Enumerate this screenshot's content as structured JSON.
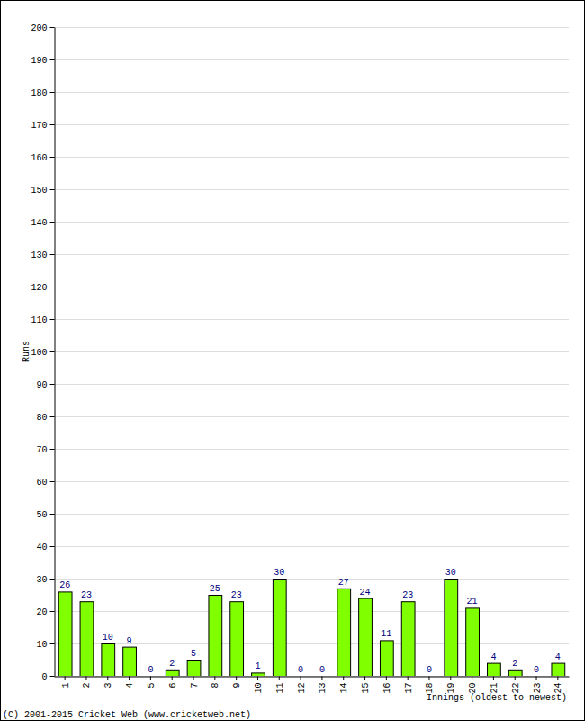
{
  "chart_data": {
    "type": "bar",
    "categories": [
      "1",
      "2",
      "3",
      "4",
      "5",
      "6",
      "7",
      "8",
      "9",
      "10",
      "11",
      "12",
      "13",
      "14",
      "15",
      "16",
      "17",
      "18",
      "19",
      "20",
      "21",
      "22",
      "23",
      "24"
    ],
    "values": [
      26,
      23,
      10,
      9,
      0,
      2,
      5,
      25,
      23,
      1,
      30,
      0,
      0,
      27,
      24,
      11,
      23,
      0,
      30,
      21,
      4,
      2,
      0,
      4
    ],
    "color": "#80ff00",
    "x_label": "Innings (oldest to newest)",
    "y_label": "Runs",
    "annotations": [
      "(C) 2001-2015 Cricket Web (www.cricketweb.net)"
    ],
    "ylim": [
      0,
      200
    ],
    "yticks": [
      0,
      10,
      20,
      30,
      40,
      50,
      60,
      70,
      80,
      90,
      100,
      110,
      120,
      130,
      140,
      150,
      160,
      170,
      180,
      190,
      200
    ],
    "grid": true,
    "data_labels": true
  }
}
